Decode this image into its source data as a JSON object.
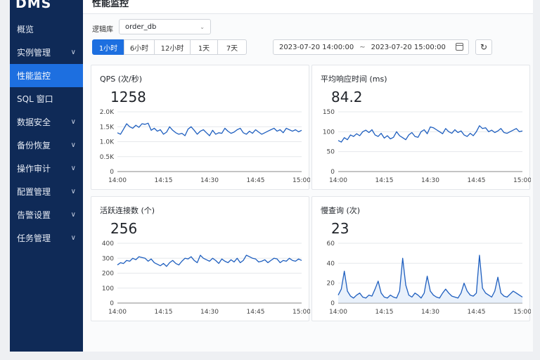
{
  "app": {
    "logo": "DMS"
  },
  "sidebar": {
    "items": [
      {
        "label": "概览",
        "chevron": false,
        "active": false
      },
      {
        "label": "实例管理",
        "chevron": true,
        "active": false
      },
      {
        "label": "性能监控",
        "chevron": false,
        "active": true
      },
      {
        "label": "SQL 窗口",
        "chevron": false,
        "active": false
      },
      {
        "label": "数据安全",
        "chevron": true,
        "active": false
      },
      {
        "label": "备份恢复",
        "chevron": true,
        "active": false
      },
      {
        "label": "操作审计",
        "chevron": true,
        "active": false
      },
      {
        "label": "配置管理",
        "chevron": true,
        "active": false
      },
      {
        "label": "告警设置",
        "chevron": true,
        "active": false
      },
      {
        "label": "任务管理",
        "chevron": true,
        "active": false
      }
    ]
  },
  "header": {
    "title": "性能监控"
  },
  "filters": {
    "db_label": "逻辑库",
    "db_value": "order_db",
    "ranges": [
      {
        "label": "1小时",
        "active": true
      },
      {
        "label": "6小时",
        "active": false
      },
      {
        "label": "12小时",
        "active": false
      },
      {
        "label": "1天",
        "active": false
      },
      {
        "label": "7天",
        "active": false
      }
    ],
    "start": "2023-07-20  14:00:00",
    "range_sep": "~",
    "end": "2023-07-20  15:00:00"
  },
  "icons": {
    "calendar": "calendar-icon",
    "refresh": "refresh-icon",
    "chevron": "chevron-down-icon"
  },
  "colors": {
    "accent": "#1d6fe0",
    "sidebar": "#0f2a57",
    "line": "#1f5fbf"
  },
  "cards": [
    {
      "title": "QPS (次/秒)",
      "value": "1258"
    },
    {
      "title": "平均响应时间 (ms)",
      "value": "84.2"
    },
    {
      "title": "活跃连接数 (个)",
      "value": "256"
    },
    {
      "title": "慢查询 (次)",
      "value": "23"
    }
  ],
  "chart_data": [
    {
      "type": "line",
      "x_ticks": [
        "14:00",
        "14:15",
        "14:30",
        "14:45",
        "15:00"
      ],
      "y_ticks": [
        "0",
        "0.5K",
        "1.0K",
        "1.5K",
        "2.0K"
      ],
      "ylim": [
        0,
        2000
      ],
      "grid": true,
      "values": [
        1300,
        1250,
        1420,
        1600,
        1500,
        1450,
        1550,
        1480,
        1600,
        1580,
        1620,
        1380,
        1450,
        1350,
        1400,
        1250,
        1320,
        1500,
        1380,
        1300,
        1250,
        1280,
        1200,
        1420,
        1500,
        1380,
        1250,
        1350,
        1400,
        1300,
        1200,
        1380,
        1250,
        1300,
        1280,
        1450,
        1350,
        1280,
        1320,
        1400,
        1450,
        1300,
        1250,
        1350,
        1280,
        1400,
        1320,
        1250,
        1300,
        1350,
        1400,
        1450,
        1350,
        1400,
        1300,
        1450,
        1400,
        1350,
        1400,
        1330,
        1380
      ]
    },
    {
      "type": "line",
      "x_ticks": [
        "14:00",
        "14:15",
        "14:30",
        "14:45",
        "15:00"
      ],
      "y_ticks": [
        "0",
        "50",
        "100",
        "150"
      ],
      "ylim": [
        0,
        150
      ],
      "grid": true,
      "values": [
        78,
        74,
        85,
        80,
        92,
        88,
        95,
        90,
        100,
        104,
        98,
        105,
        92,
        88,
        96,
        84,
        90,
        82,
        86,
        100,
        90,
        85,
        80,
        92,
        98,
        88,
        86,
        100,
        105,
        95,
        112,
        110,
        105,
        100,
        95,
        108,
        100,
        96,
        105,
        98,
        102,
        92,
        88,
        96,
        90,
        100,
        115,
        108,
        110,
        100,
        104,
        98,
        102,
        108,
        98,
        96,
        100,
        104,
        108,
        100,
        102
      ]
    },
    {
      "type": "line",
      "x_ticks": [
        "14:00",
        "14:15",
        "14:30",
        "14:45",
        "15:00"
      ],
      "y_ticks": [
        "0",
        "100",
        "200",
        "300",
        "400"
      ],
      "ylim": [
        0,
        400
      ],
      "grid": true,
      "values": [
        255,
        270,
        265,
        285,
        280,
        300,
        290,
        310,
        305,
        300,
        280,
        295,
        270,
        260,
        250,
        265,
        245,
        270,
        285,
        265,
        255,
        280,
        300,
        295,
        310,
        285,
        270,
        320,
        300,
        290,
        280,
        300,
        285,
        265,
        295,
        280,
        270,
        290,
        275,
        300,
        270,
        285,
        320,
        310,
        300,
        295,
        275,
        280,
        290,
        270,
        285,
        300,
        295,
        270,
        285,
        280,
        300,
        285,
        280,
        295,
        285
      ]
    },
    {
      "type": "area",
      "x_ticks": [
        "14:00",
        "14:15",
        "14:30",
        "14:45",
        "15:00"
      ],
      "y_ticks": [
        "0",
        "20",
        "40",
        "60"
      ],
      "ylim": [
        0,
        60
      ],
      "grid": true,
      "values": [
        8,
        14,
        32,
        12,
        7,
        5,
        8,
        10,
        6,
        5,
        8,
        7,
        14,
        22,
        10,
        6,
        5,
        8,
        6,
        5,
        12,
        45,
        18,
        8,
        6,
        10,
        8,
        5,
        10,
        27,
        12,
        8,
        6,
        5,
        10,
        14,
        10,
        7,
        6,
        5,
        10,
        20,
        12,
        8,
        7,
        10,
        48,
        15,
        10,
        8,
        6,
        12,
        26,
        10,
        7,
        6,
        9,
        12,
        10,
        8,
        6
      ]
    }
  ]
}
